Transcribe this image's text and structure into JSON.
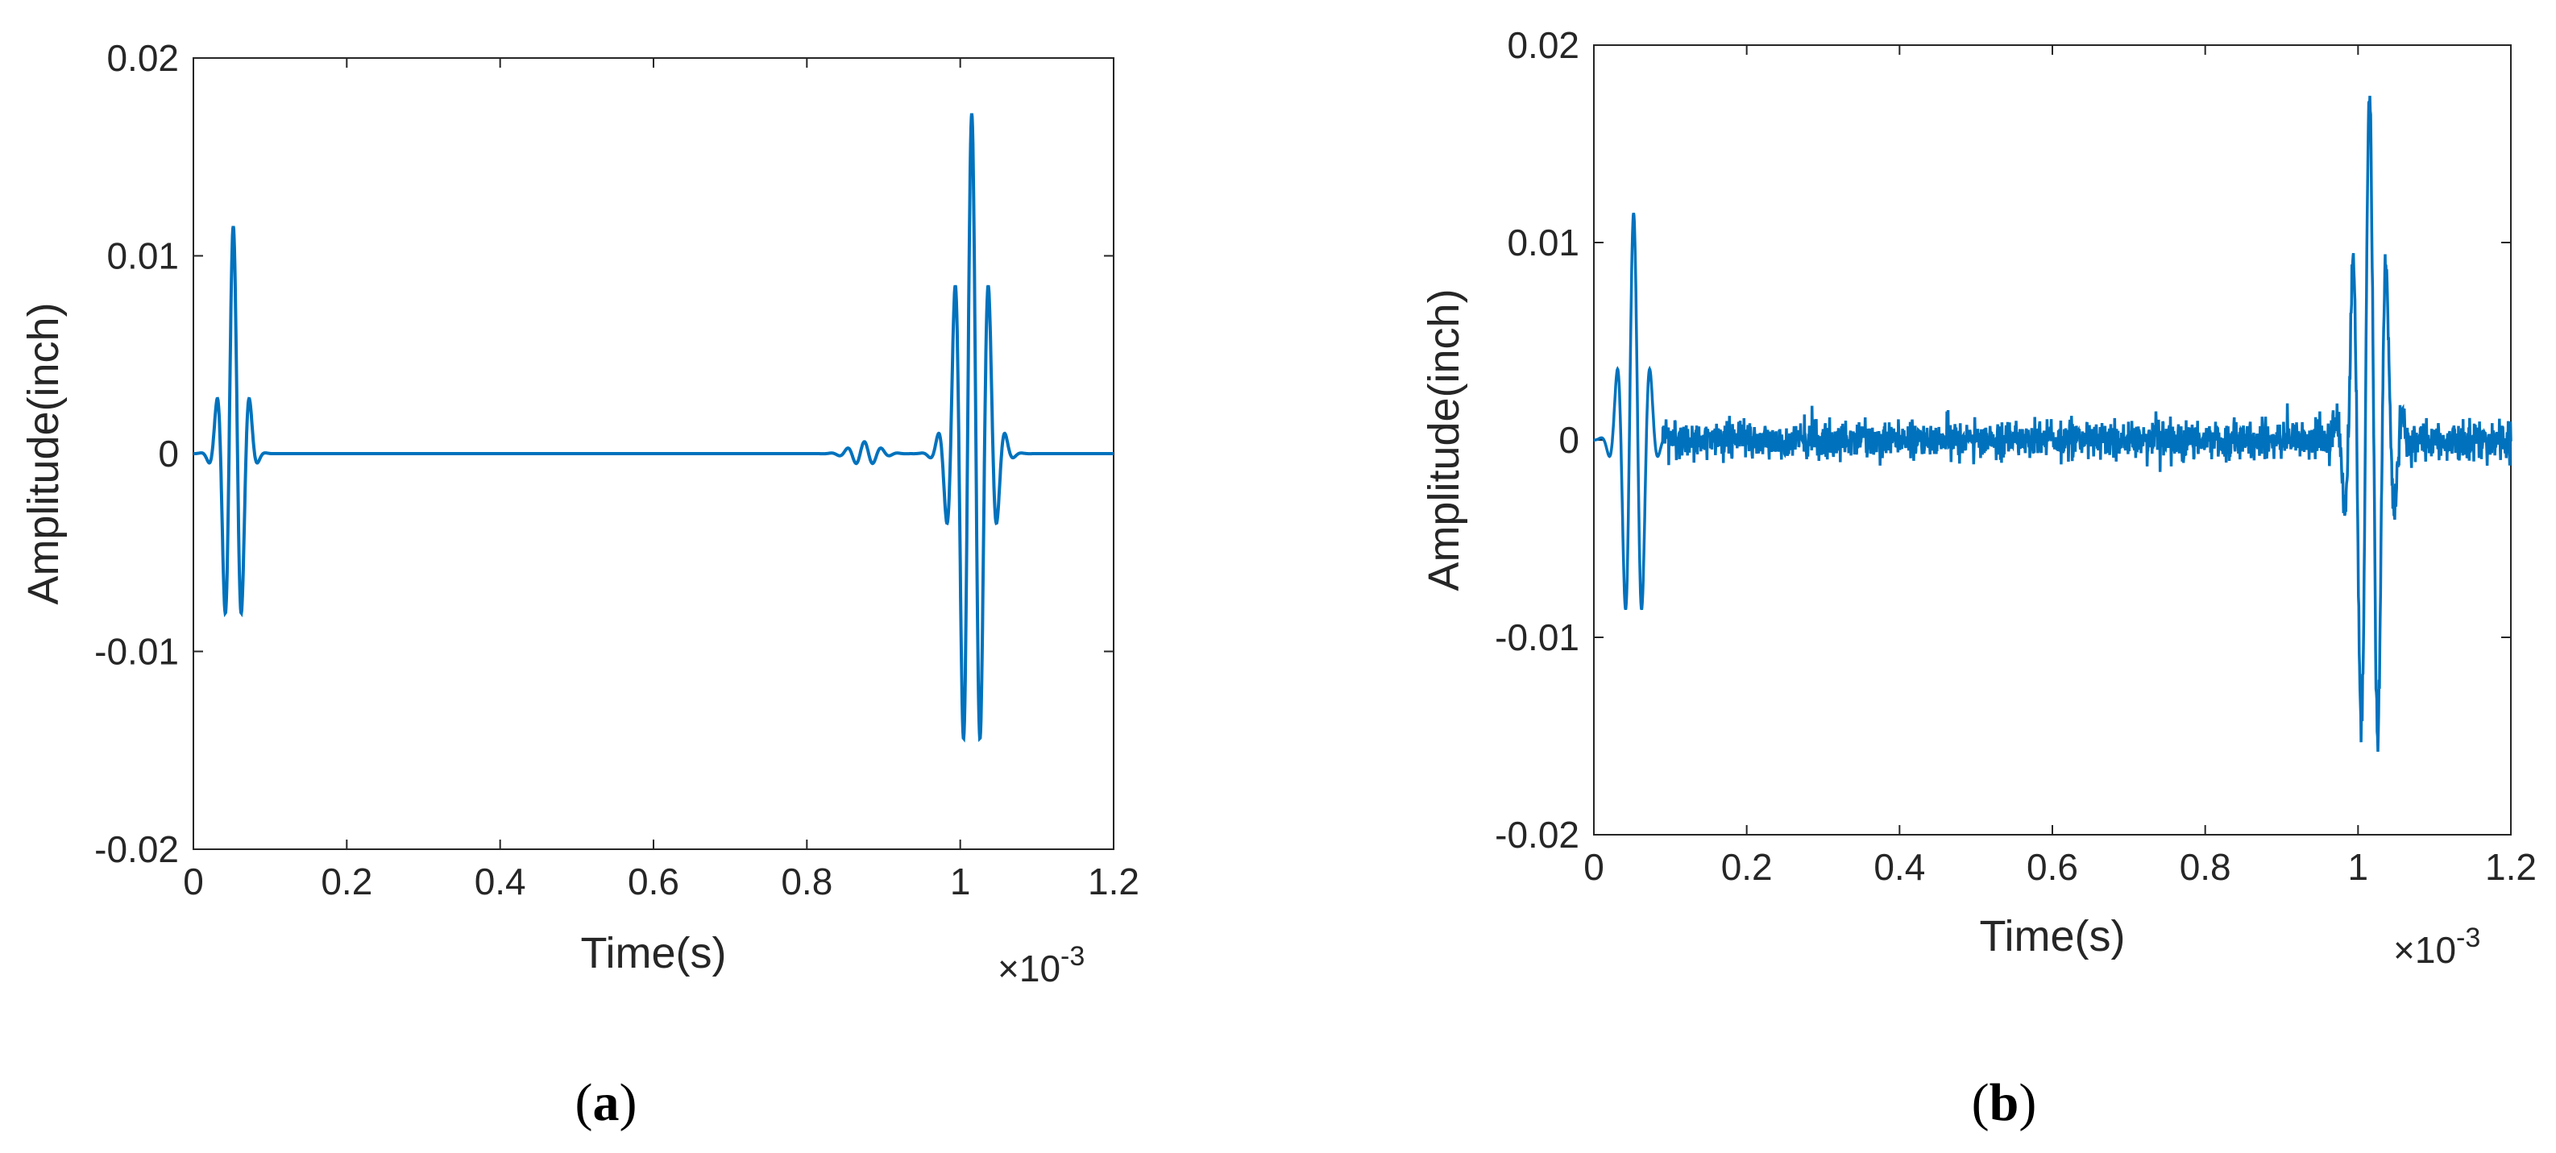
{
  "colors": {
    "line": "#0072BD",
    "axis": "#262626",
    "background": "#ffffff"
  },
  "chart_data": [
    {
      "type": "line",
      "panel_label": "a",
      "xlabel": "Time(s)",
      "ylabel": "Amplitude(inch)",
      "x_multiplier": "×10",
      "x_multiplier_exp": "-3",
      "xlim": [
        0,
        1.2
      ],
      "ylim": [
        -0.02,
        0.02
      ],
      "xticks": [
        "0",
        "0.2",
        "0.4",
        "0.6",
        "0.8",
        "1",
        "1.2"
      ],
      "yticks": [
        "-0.02",
        "-0.01",
        "0",
        "0.01",
        "0.02"
      ],
      "grid": false,
      "noise": 0,
      "series": [
        {
          "packets": [
            {
              "t0": 0.052,
              "amp": 0.0115,
              "width": 0.018,
              "freq": 45
            },
            {
              "t0": 0.875,
              "amp": 0.0006,
              "width": 0.025,
              "freq": 45
            },
            {
              "t0": 1.015,
              "amp": 0.0172,
              "width": 0.026,
              "freq": 45
            }
          ]
        }
      ]
    },
    {
      "type": "line",
      "panel_label": "b",
      "xlabel": "Time(s)",
      "ylabel": "Amplitude(inch)",
      "x_multiplier": "×10",
      "x_multiplier_exp": "-3",
      "xlim": [
        0,
        1.2
      ],
      "ylim": [
        -0.02,
        0.02
      ],
      "xticks": [
        "0",
        "0.2",
        "0.4",
        "0.6",
        "0.8",
        "1",
        "1.2"
      ],
      "yticks": [
        "-0.02",
        "-0.01",
        "0",
        "0.01",
        "0.02"
      ],
      "grid": false,
      "noise": 0.0009,
      "series": [
        {
          "packets": [
            {
              "t0": 0.052,
              "amp": 0.0115,
              "width": 0.02,
              "freq": 45
            },
            {
              "t0": 1.015,
              "amp": 0.0175,
              "width": 0.026,
              "freq": 45
            }
          ]
        }
      ]
    }
  ]
}
